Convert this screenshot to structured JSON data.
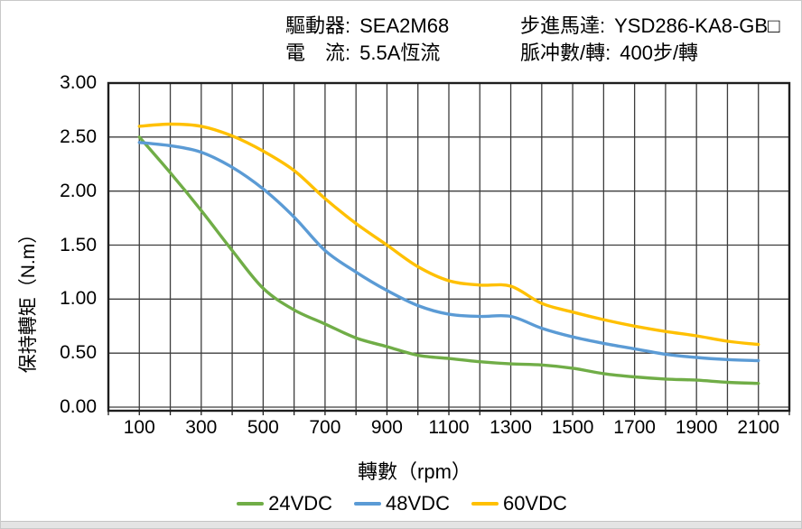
{
  "header": {
    "left": [
      {
        "label": "驅動器:",
        "value": "SEA2M68"
      },
      {
        "label": "電　流:",
        "value": "5.5A恆流"
      }
    ],
    "right": [
      {
        "label": "步進馬達:",
        "value": "YSD286-KA8-GB□"
      },
      {
        "label": "脈冲數/轉:",
        "value": "400步/轉"
      }
    ]
  },
  "chart_data": {
    "type": "line",
    "title": "",
    "xlabel": "轉數（rpm）",
    "ylabel": "保持轉矩（N.m）",
    "grid": true,
    "legend_position": "bottom",
    "xlim": [
      0,
      2200
    ],
    "ylim": [
      0,
      3.0
    ],
    "x_grid_step": 100,
    "x": [
      100,
      200,
      300,
      400,
      500,
      600,
      700,
      800,
      900,
      1000,
      1100,
      1200,
      1300,
      1400,
      1500,
      1600,
      1700,
      1800,
      1900,
      2000,
      2100
    ],
    "series": [
      {
        "name": "24VDC",
        "color": "#70AD47",
        "values": [
          2.5,
          2.17,
          1.82,
          1.45,
          1.1,
          0.9,
          0.77,
          0.64,
          0.56,
          0.48,
          0.45,
          0.42,
          0.4,
          0.39,
          0.36,
          0.31,
          0.28,
          0.26,
          0.25,
          0.23,
          0.22
        ]
      },
      {
        "name": "48VDC",
        "color": "#5B9BD5",
        "values": [
          2.45,
          2.42,
          2.36,
          2.22,
          2.02,
          1.76,
          1.45,
          1.25,
          1.08,
          0.94,
          0.86,
          0.84,
          0.84,
          0.73,
          0.65,
          0.59,
          0.54,
          0.49,
          0.46,
          0.44,
          0.43
        ]
      },
      {
        "name": "60VDC",
        "color": "#FFC000",
        "values": [
          2.6,
          2.62,
          2.6,
          2.51,
          2.37,
          2.19,
          1.93,
          1.7,
          1.5,
          1.3,
          1.17,
          1.13,
          1.12,
          0.96,
          0.88,
          0.81,
          0.75,
          0.7,
          0.66,
          0.61,
          0.58
        ]
      }
    ],
    "x_tick_values": [
      100,
      300,
      500,
      700,
      900,
      1100,
      1300,
      1500,
      1700,
      1900,
      2100
    ],
    "x_tick_labels": [
      "100",
      "300",
      "500",
      "700",
      "900",
      "1100",
      "1300",
      "1500",
      "1700",
      "1900",
      "2100"
    ],
    "y_tick_values": [
      0,
      0.5,
      1.0,
      1.5,
      2.0,
      2.5,
      3.0
    ],
    "y_tick_labels": [
      "0.00",
      "0.50",
      "1.00",
      "1.50",
      "2.00",
      "2.50",
      "3.00"
    ],
    "grid_color": "#3e3e3e",
    "border_color": "#1e1e1e"
  }
}
